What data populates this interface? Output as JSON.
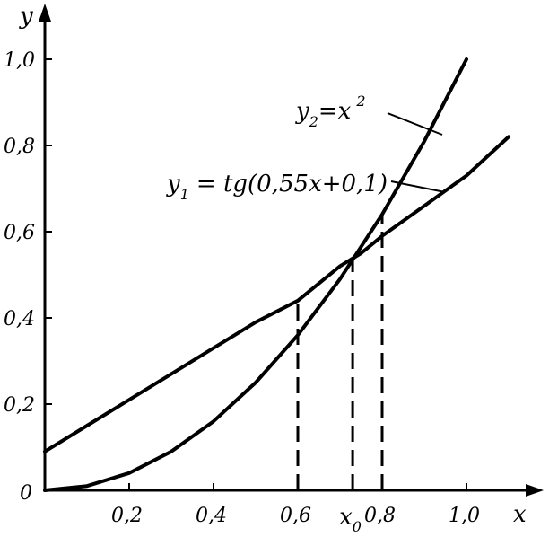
{
  "chart_data": {
    "type": "line",
    "title": "",
    "xlabel": "x",
    "ylabel": "y",
    "xlim": [
      0,
      1.15
    ],
    "ylim": [
      0,
      1.0
    ],
    "origin_label": "0",
    "x_ticks": [
      {
        "value": 0.2,
        "label": "0,2"
      },
      {
        "value": 0.4,
        "label": "0,4"
      },
      {
        "value": 0.6,
        "label": "0,6"
      },
      {
        "value": 0.8,
        "label": "0,8"
      },
      {
        "value": 1.0,
        "label": "1,0"
      }
    ],
    "y_ticks": [
      {
        "value": 0.2,
        "label": "0,2"
      },
      {
        "value": 0.4,
        "label": "0,4"
      },
      {
        "value": 0.6,
        "label": "0,6"
      },
      {
        "value": 0.8,
        "label": "0,8"
      },
      {
        "value": 1.0,
        "label": "1,0"
      }
    ],
    "grid": false,
    "legend": "none",
    "series": [
      {
        "name": "y1 = tg(0,55x+0,1)",
        "label": {
          "main": "y",
          "sub": "1",
          "rest": "=  tg(0,55x+0,1)"
        },
        "x": [
          0.0,
          0.1,
          0.2,
          0.3,
          0.4,
          0.5,
          0.6,
          0.7,
          0.75,
          0.8,
          0.9,
          1.0,
          1.1
        ],
        "y": [
          0.09,
          0.15,
          0.21,
          0.27,
          0.33,
          0.39,
          0.44,
          0.52,
          0.55,
          0.59,
          0.66,
          0.73,
          0.82
        ]
      },
      {
        "name": "y2 = x2",
        "label": {
          "main": "y",
          "sub": "2",
          "rest": "=x",
          "sup": "2"
        },
        "x": [
          0.0,
          0.1,
          0.2,
          0.3,
          0.4,
          0.5,
          0.6,
          0.7,
          0.8,
          0.9,
          1.0
        ],
        "y": [
          0.0,
          0.01,
          0.04,
          0.09,
          0.16,
          0.25,
          0.36,
          0.49,
          0.64,
          0.81,
          1.0
        ]
      }
    ],
    "vertical_markers": [
      {
        "x": 0.6,
        "y_top": 0.44
      },
      {
        "x": 0.73,
        "y_top": 0.54
      },
      {
        "x": 0.8,
        "y_top": 0.64
      }
    ],
    "annotations": [
      {
        "text": "x",
        "sub": "0",
        "x": 0.73
      }
    ]
  }
}
